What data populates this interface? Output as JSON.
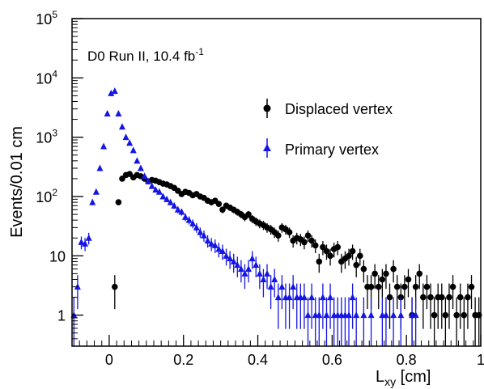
{
  "chart_data": {
    "type": "scatter",
    "title": "",
    "annotation": {
      "main": "D0 Run II, 10.4 fb",
      "superscript": "-1"
    },
    "xlabel": {
      "main": "L",
      "subscript": "xy",
      "unit": " [cm]"
    },
    "ylabel": "Events/0.01 cm",
    "xlim": [
      -0.1,
      1.0
    ],
    "ylim_log": [
      0.3,
      100000
    ],
    "y_scale": "log",
    "x_ticks": [
      {
        "value": 0,
        "label": "0"
      },
      {
        "value": 0.2,
        "label": "0.2"
      },
      {
        "value": 0.4,
        "label": "0.4"
      },
      {
        "value": 0.6,
        "label": "0.6"
      },
      {
        "value": 0.8,
        "label": "0.8"
      },
      {
        "value": 1.0,
        "label": "1"
      }
    ],
    "y_ticks": [
      {
        "value": 1,
        "label": "1"
      },
      {
        "value": 10,
        "label": "10"
      },
      {
        "value": 100,
        "base": "10",
        "exp": "2"
      },
      {
        "value": 1000,
        "base": "10",
        "exp": "3"
      },
      {
        "value": 10000,
        "base": "10",
        "exp": "4"
      },
      {
        "value": 100000,
        "base": "10",
        "exp": "5"
      }
    ],
    "legend_position": "top-right",
    "series": [
      {
        "name": "Displaced vertex",
        "marker": "circle",
        "color": "#000000",
        "points": [
          [
            0.015,
            3
          ],
          [
            0.025,
            80
          ],
          [
            0.035,
            200
          ],
          [
            0.045,
            230
          ],
          [
            0.055,
            240
          ],
          [
            0.065,
            210
          ],
          [
            0.075,
            230
          ],
          [
            0.085,
            220
          ],
          [
            0.095,
            200
          ],
          [
            0.105,
            180
          ],
          [
            0.115,
            190
          ],
          [
            0.125,
            185
          ],
          [
            0.135,
            175
          ],
          [
            0.145,
            165
          ],
          [
            0.155,
            160
          ],
          [
            0.165,
            150
          ],
          [
            0.175,
            140
          ],
          [
            0.185,
            125
          ],
          [
            0.195,
            110
          ],
          [
            0.205,
            120
          ],
          [
            0.215,
            115
          ],
          [
            0.225,
            105
          ],
          [
            0.235,
            110
          ],
          [
            0.245,
            100
          ],
          [
            0.255,
            95
          ],
          [
            0.265,
            85
          ],
          [
            0.275,
            80
          ],
          [
            0.285,
            85
          ],
          [
            0.295,
            75
          ],
          [
            0.305,
            60
          ],
          [
            0.315,
            70
          ],
          [
            0.325,
            65
          ],
          [
            0.335,
            60
          ],
          [
            0.345,
            55
          ],
          [
            0.355,
            50
          ],
          [
            0.365,
            45
          ],
          [
            0.375,
            50
          ],
          [
            0.385,
            42
          ],
          [
            0.395,
            38
          ],
          [
            0.405,
            35
          ],
          [
            0.415,
            33
          ],
          [
            0.425,
            30
          ],
          [
            0.435,
            28
          ],
          [
            0.445,
            25
          ],
          [
            0.455,
            22
          ],
          [
            0.465,
            30
          ],
          [
            0.475,
            28
          ],
          [
            0.485,
            25
          ],
          [
            0.495,
            18
          ],
          [
            0.505,
            20
          ],
          [
            0.515,
            19
          ],
          [
            0.525,
            17
          ],
          [
            0.535,
            22
          ],
          [
            0.545,
            18
          ],
          [
            0.555,
            15
          ],
          [
            0.565,
            8
          ],
          [
            0.575,
            14
          ],
          [
            0.585,
            12
          ],
          [
            0.595,
            10
          ],
          [
            0.605,
            13
          ],
          [
            0.615,
            14
          ],
          [
            0.625,
            8
          ],
          [
            0.635,
            9
          ],
          [
            0.645,
            10
          ],
          [
            0.655,
            12
          ],
          [
            0.665,
            7
          ],
          [
            0.675,
            10
          ],
          [
            0.685,
            6
          ],
          [
            0.695,
            3
          ],
          [
            0.705,
            3
          ],
          [
            0.715,
            5
          ],
          [
            0.725,
            3
          ],
          [
            0.735,
            4
          ],
          [
            0.745,
            5
          ],
          [
            0.755,
            2
          ],
          [
            0.765,
            6
          ],
          [
            0.775,
            3
          ],
          [
            0.785,
            2
          ],
          [
            0.795,
            3
          ],
          [
            0.805,
            4
          ],
          [
            0.815,
            1
          ],
          [
            0.825,
            3
          ],
          [
            0.835,
            5
          ],
          [
            0.845,
            2
          ],
          [
            0.855,
            3
          ],
          [
            0.865,
            2
          ],
          [
            0.875,
            1
          ],
          [
            0.885,
            2
          ],
          [
            0.895,
            2
          ],
          [
            0.905,
            1
          ],
          [
            0.915,
            2
          ],
          [
            0.925,
            3
          ],
          [
            0.935,
            1
          ],
          [
            0.945,
            2
          ],
          [
            0.955,
            1
          ],
          [
            0.965,
            2
          ],
          [
            0.975,
            3
          ],
          [
            0.985,
            1
          ],
          [
            0.995,
            1
          ]
        ]
      },
      {
        "name": "Primary vertex",
        "marker": "triangle",
        "color": "#1515e6",
        "points": [
          [
            -0.095,
            1
          ],
          [
            -0.085,
            3
          ],
          [
            -0.075,
            17
          ],
          [
            -0.065,
            16
          ],
          [
            -0.055,
            20
          ],
          [
            -0.045,
            80
          ],
          [
            -0.035,
            120
          ],
          [
            -0.025,
            300
          ],
          [
            -0.015,
            700
          ],
          [
            -0.005,
            2500
          ],
          [
            0.005,
            5500
          ],
          [
            0.015,
            6000
          ],
          [
            0.025,
            2500
          ],
          [
            0.035,
            1500
          ],
          [
            0.045,
            1000
          ],
          [
            0.055,
            800
          ],
          [
            0.065,
            600
          ],
          [
            0.075,
            400
          ],
          [
            0.085,
            300
          ],
          [
            0.095,
            220
          ],
          [
            0.105,
            180
          ],
          [
            0.115,
            150
          ],
          [
            0.125,
            130
          ],
          [
            0.135,
            120
          ],
          [
            0.145,
            100
          ],
          [
            0.155,
            90
          ],
          [
            0.165,
            80
          ],
          [
            0.175,
            70
          ],
          [
            0.185,
            60
          ],
          [
            0.195,
            55
          ],
          [
            0.205,
            45
          ],
          [
            0.215,
            40
          ],
          [
            0.225,
            35
          ],
          [
            0.235,
            30
          ],
          [
            0.245,
            25
          ],
          [
            0.255,
            22
          ],
          [
            0.265,
            18
          ],
          [
            0.275,
            16
          ],
          [
            0.285,
            15
          ],
          [
            0.295,
            13
          ],
          [
            0.305,
            12
          ],
          [
            0.315,
            10
          ],
          [
            0.325,
            9
          ],
          [
            0.335,
            8
          ],
          [
            0.345,
            7
          ],
          [
            0.355,
            6
          ],
          [
            0.365,
            5
          ],
          [
            0.375,
            6
          ],
          [
            0.385,
            9
          ],
          [
            0.395,
            7
          ],
          [
            0.405,
            5
          ],
          [
            0.415,
            4
          ],
          [
            0.425,
            5
          ],
          [
            0.435,
            3
          ],
          [
            0.445,
            4
          ],
          [
            0.455,
            2
          ],
          [
            0.465,
            3
          ],
          [
            0.475,
            2
          ],
          [
            0.485,
            2
          ],
          [
            0.495,
            3
          ],
          [
            0.505,
            2
          ],
          [
            0.515,
            2
          ],
          [
            0.525,
            2
          ],
          [
            0.535,
            1
          ],
          [
            0.545,
            2
          ],
          [
            0.555,
            1
          ],
          [
            0.565,
            1
          ],
          [
            0.575,
            2
          ],
          [
            0.585,
            1
          ],
          [
            0.595,
            2
          ],
          [
            0.605,
            1
          ],
          [
            0.615,
            1
          ],
          [
            0.625,
            1
          ],
          [
            0.635,
            1
          ],
          [
            0.645,
            1
          ],
          [
            0.655,
            2
          ],
          [
            0.665,
            1
          ],
          [
            0.685,
            1
          ],
          [
            0.705,
            1
          ],
          [
            0.735,
            1
          ],
          [
            0.745,
            1
          ],
          [
            0.765,
            1
          ],
          [
            0.785,
            1
          ],
          [
            0.815,
            1
          ],
          [
            0.825,
            1
          ]
        ]
      }
    ]
  }
}
